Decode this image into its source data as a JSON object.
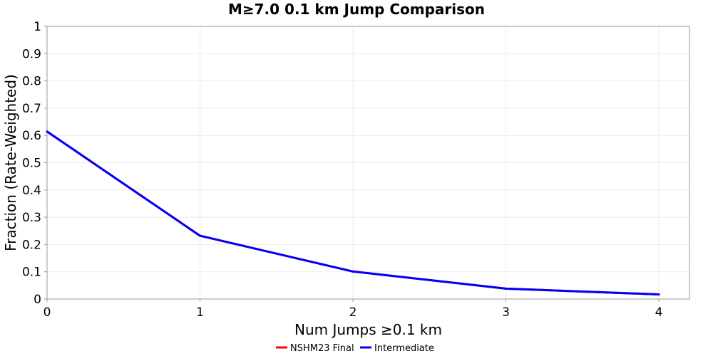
{
  "chart_data": {
    "type": "line",
    "title": "M≥7.0 0.1 km Jump Comparison",
    "xlabel": "Num Jumps ≥0.1 km",
    "ylabel": "Fraction (Rate-Weighted)",
    "x": [
      0,
      1,
      2,
      3,
      4
    ],
    "xlim": [
      0,
      4.2
    ],
    "ylim": [
      0,
      1
    ],
    "x_ticks": [
      "0",
      "1",
      "2",
      "3",
      "4"
    ],
    "y_ticks": [
      "0",
      "0.1",
      "0.2",
      "0.3",
      "0.4",
      "0.5",
      "0.6",
      "0.7",
      "0.8",
      "0.9",
      "1"
    ],
    "grid": true,
    "legend_position": "bottom",
    "series": [
      {
        "name": "NSHM23 Final",
        "color": "#ff0000",
        "values": [
          0.614,
          0.232,
          0.101,
          0.038,
          0.017
        ]
      },
      {
        "name": "Intermediate",
        "color": "#0000ff",
        "values": [
          0.614,
          0.232,
          0.101,
          0.038,
          0.017
        ]
      }
    ]
  }
}
